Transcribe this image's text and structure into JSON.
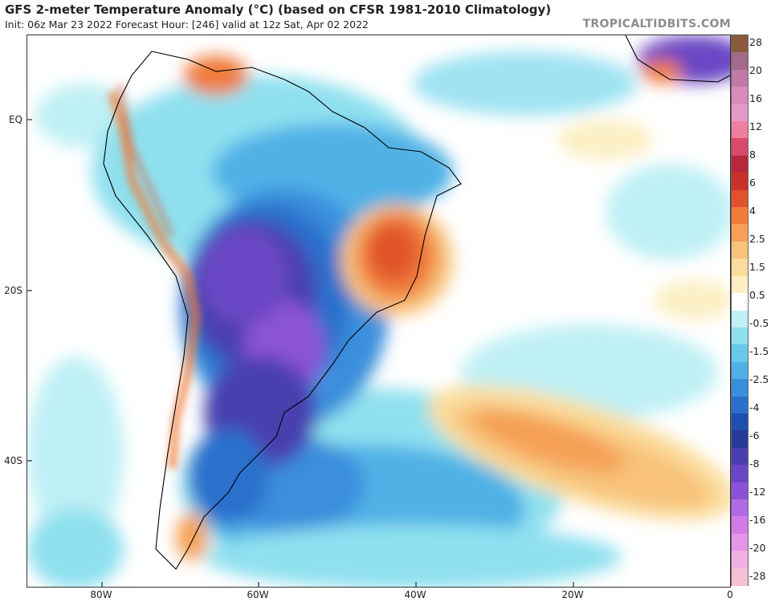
{
  "header": {
    "title": "GFS 2-meter Temperature Anomaly (°C) (based on CFSR 1981-2010 Climatology)",
    "subtitle": "Init: 06z Mar 23 2022   Forecast Hour: [246]   valid at 12z Sat, Apr 02 2022",
    "brand": "TROPICALTIDBITS.COM"
  },
  "axes": {
    "lat_labels": [
      "EQ",
      "20S",
      "40S"
    ],
    "lon_labels": [
      "80W",
      "60W",
      "40W",
      "20W",
      "0"
    ]
  },
  "colorbar": {
    "labels": [
      "28",
      "20",
      "16",
      "12",
      "8",
      "6",
      "4",
      "2.5",
      "1.5",
      "0.5",
      "-0.5",
      "-1.5",
      "-2.5",
      "-4",
      "-6",
      "-8",
      "-12",
      "-16",
      "-20",
      "-28"
    ],
    "colors": [
      "#8b5a3c",
      "#a36a8a",
      "#c07aa8",
      "#d78bb8",
      "#e59ac6",
      "#ef7fa0",
      "#d94a6a",
      "#b8283c",
      "#c8322a",
      "#e0522c",
      "#f07c3a",
      "#f5a054",
      "#f8c27a",
      "#fadd9c",
      "#fcefc4",
      "#ffffff",
      "#bff0f5",
      "#8fe0ef",
      "#66c9ea",
      "#4fb1e6",
      "#3a8fdc",
      "#2b6fcc",
      "#1f4fae",
      "#2a3a9a",
      "#4a3fb0",
      "#6a46c4",
      "#8c52d6",
      "#b06ae4",
      "#d27ae8",
      "#e396e8",
      "#f0b0e0",
      "#f4c0d4"
    ]
  }
}
